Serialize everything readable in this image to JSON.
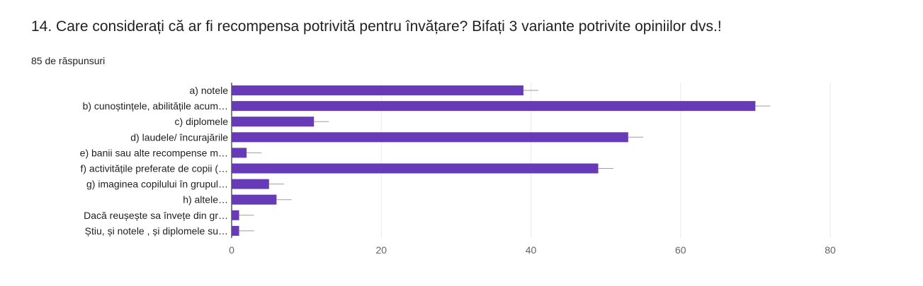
{
  "question": {
    "title": "14. Care considerați că ar fi recompensa potrivită pentru învățare? Bifați 3 variante potrivite opiniilor dvs.!",
    "responses": "85 de răspunsuri"
  },
  "colors": {
    "bar": "#673ab7",
    "grid": "#e8eaed",
    "axis": "#3c4043",
    "error": "#9e9e9e"
  },
  "chart_data": {
    "type": "bar",
    "orientation": "horizontal",
    "title": "",
    "xlabel": "",
    "ylabel": "",
    "categories": [
      "a) notele",
      "b) cunoștințele, abilitățile acum…",
      "c) diplomele",
      "d) laudele/ încurajările",
      "e) banii sau alte recompense m…",
      "f) activitățile preferate de copii (…",
      "g) imaginea copilului în grupul…",
      "h) altele…",
      "Dacă reușește sa învețe din gr…",
      "Știu, și notele , și diplomele su…"
    ],
    "values": [
      39,
      70,
      11,
      53,
      2,
      49,
      5,
      6,
      1,
      1
    ],
    "error_plus": [
      2,
      2,
      2,
      2,
      2,
      2,
      2,
      2,
      2,
      2
    ],
    "xlim": [
      0,
      80
    ],
    "xticks": [
      0,
      20,
      40,
      60,
      80
    ],
    "grid": true
  }
}
